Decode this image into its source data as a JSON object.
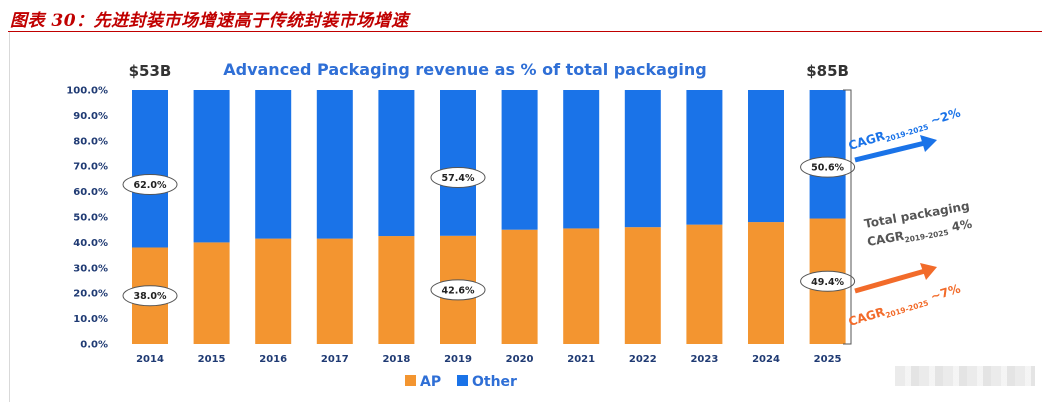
{
  "figure_caption": "图表 30：先进封装市场增速高于传统封装市场增速",
  "chart_data": {
    "type": "bar",
    "stacked": true,
    "title": "Advanced Packaging revenue as % of total packaging",
    "categories": [
      "2014",
      "2015",
      "2016",
      "2017",
      "2018",
      "2019",
      "2020",
      "2021",
      "2022",
      "2023",
      "2024",
      "2025"
    ],
    "series": [
      {
        "name": "AP",
        "color": "#f39530",
        "values": [
          38.0,
          40,
          41.5,
          41.5,
          42.5,
          42.6,
          45,
          45.5,
          46,
          47,
          48,
          49.4
        ]
      },
      {
        "name": "Other",
        "color": "#1a73e8",
        "values": [
          62.0,
          60,
          58.5,
          58.5,
          57.5,
          57.4,
          55,
          54.5,
          54,
          53,
          52,
          50.6
        ]
      }
    ],
    "ylim": [
      0,
      100
    ],
    "yticks": [
      "0.0%",
      "10.0%",
      "20.0%",
      "30.0%",
      "40.0%",
      "50.0%",
      "60.0%",
      "70.0%",
      "80.0%",
      "90.0%",
      "100.0%"
    ],
    "grid": false,
    "legend_position": "bottom",
    "legend": [
      {
        "label": "AP",
        "color": "#f39530"
      },
      {
        "label": "Other",
        "color": "#1a73e8"
      }
    ],
    "annotations": {
      "start_total": "$53B",
      "end_total": "$85B",
      "ovals": [
        {
          "category": "2014",
          "series": "Other",
          "text": "62.0%"
        },
        {
          "category": "2014",
          "series": "AP",
          "text": "38.0%"
        },
        {
          "category": "2019",
          "series": "Other",
          "text": "57.4%"
        },
        {
          "category": "2019",
          "series": "AP",
          "text": "42.6%"
        },
        {
          "category": "2025",
          "series": "Other",
          "text": "50.6%"
        },
        {
          "category": "2025",
          "series": "AP",
          "text": "49.4%"
        }
      ],
      "cagr_other": {
        "prefix": "CAGR",
        "sub": "2019-2025",
        "suffix": " ~2%",
        "color": "#1a73e8"
      },
      "cagr_total_line1": "Total packaging",
      "cagr_total": {
        "prefix": "CAGR",
        "sub": "2019-2025",
        "suffix": " 4%",
        "color": "#555555"
      },
      "cagr_ap": {
        "prefix": "CAGR",
        "sub": "2019-2025",
        "suffix": " ~7%",
        "color": "#f26b2a"
      }
    }
  }
}
